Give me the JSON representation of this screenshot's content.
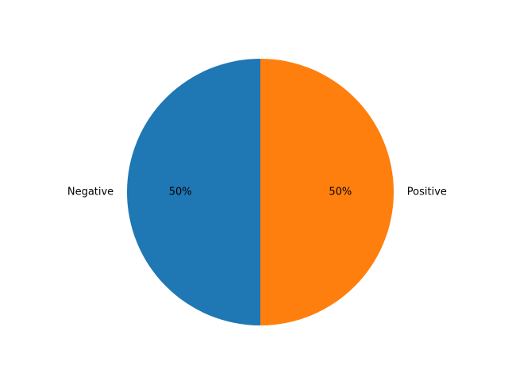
{
  "chart_data": {
    "type": "pie",
    "title": "",
    "categories": [
      "Negative",
      "Positive"
    ],
    "values": [
      50,
      50
    ],
    "percent_labels": [
      "50%",
      "50%"
    ],
    "colors": [
      "#1f77b4",
      "#ff7f0e"
    ],
    "start_angle_deg": 90,
    "direction": "counterclockwise",
    "legend": "none"
  }
}
